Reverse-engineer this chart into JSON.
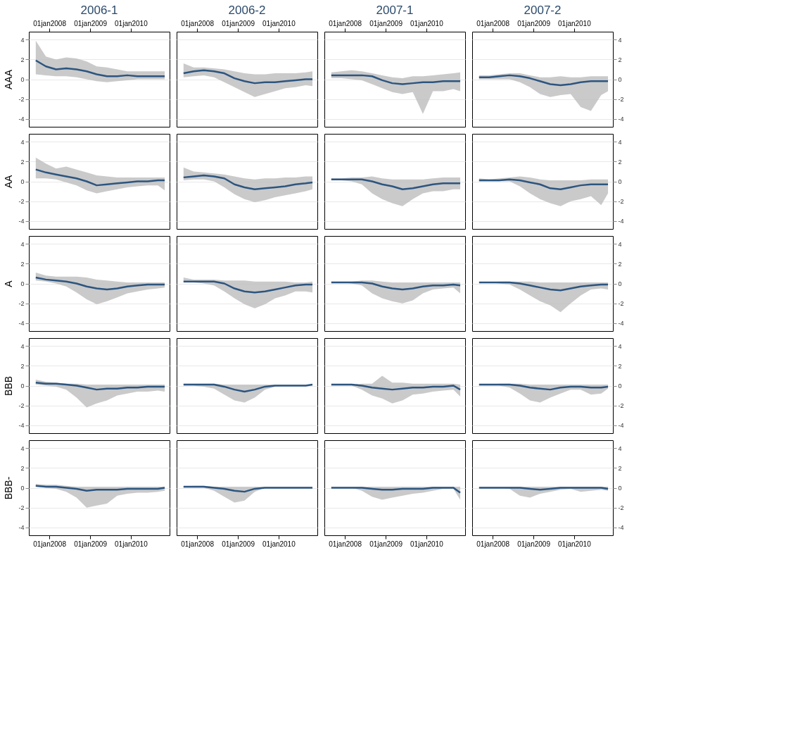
{
  "chart_data": [
    {
      "type": "line",
      "title": "2006-1",
      "ylabel": "AAA",
      "x": [
        "2007-09",
        "2007-12",
        "2008-03",
        "2008-06",
        "2008-09",
        "2008-12",
        "2009-03",
        "2009-06",
        "2009-09",
        "2009-12",
        "2010-03",
        "2010-06",
        "2010-09",
        "2010-11"
      ],
      "xlim": [
        "2007-07-01",
        "2010-12-15"
      ],
      "xticks": [
        {
          "value": "2008-01-01",
          "label": "01jan2008"
        },
        {
          "value": "2009-01-01",
          "label": "01jan2009"
        },
        {
          "value": "2010-01-01",
          "label": "01jan2010"
        }
      ],
      "ylim": [
        -4.8,
        4.8
      ],
      "yticks": [
        -4,
        -2,
        0,
        2,
        4
      ],
      "grid": "y",
      "series": [
        {
          "color": "#2c5580",
          "values": [
            1.9,
            1.3,
            1.0,
            1.1,
            1.0,
            0.8,
            0.5,
            0.3,
            0.3,
            0.4,
            0.3,
            0.3,
            0.3,
            0.3
          ],
          "lower": [
            0.5,
            0.4,
            0.3,
            0.3,
            0.2,
            0,
            -0.2,
            -0.3,
            -0.2,
            -0.1,
            0,
            0,
            0,
            0
          ],
          "upper": [
            3.9,
            2.3,
            2.0,
            2.2,
            2.1,
            1.8,
            1.3,
            1.2,
            1.0,
            0.8,
            0.8,
            0.8,
            0.8,
            0.8
          ]
        }
      ]
    },
    {
      "type": "line",
      "title": "2006-2",
      "tick_labels": "x",
      "x": [
        "2007-09",
        "2007-12",
        "2008-03",
        "2008-06",
        "2008-09",
        "2008-12",
        "2009-03",
        "2009-06",
        "2009-09",
        "2009-12",
        "2010-03",
        "2010-06",
        "2010-09",
        "2010-11"
      ],
      "xlim": [
        "2007-07-01",
        "2010-12-15"
      ],
      "xticks": [
        {
          "value": "2008-01-01",
          "label": "01jan2008"
        },
        {
          "value": "2009-01-01",
          "label": "01jan2009"
        },
        {
          "value": "2010-01-01",
          "label": "01jan2010"
        }
      ],
      "ylim": [
        -4.8,
        4.8
      ],
      "yticks": [
        -4,
        -2,
        0,
        2,
        4
      ],
      "grid": "y",
      "series": [
        {
          "color": "#2c5580",
          "values": [
            0.6,
            0.8,
            0.9,
            0.8,
            0.6,
            0.1,
            -0.2,
            -0.4,
            -0.3,
            -0.3,
            -0.2,
            -0.1,
            0,
            0
          ],
          "lower": [
            0.2,
            0.3,
            0.4,
            0.2,
            -0.3,
            -0.8,
            -1.3,
            -1.8,
            -1.5,
            -1.2,
            -0.9,
            -0.8,
            -0.6,
            -0.7
          ],
          "upper": [
            1.6,
            1.2,
            1.2,
            1.1,
            1.0,
            0.8,
            0.6,
            0.5,
            0.5,
            0.6,
            0.6,
            0.6,
            0.7,
            0.8
          ]
        }
      ]
    },
    {
      "type": "line",
      "title": "2007-1",
      "tick_labels": "x",
      "x": [
        "2007-09",
        "2007-12",
        "2008-03",
        "2008-06",
        "2008-09",
        "2008-12",
        "2009-03",
        "2009-06",
        "2009-09",
        "2009-12",
        "2010-03",
        "2010-06",
        "2010-09",
        "2010-11"
      ],
      "xlim": [
        "2007-07-01",
        "2010-12-15"
      ],
      "xticks": [
        {
          "value": "2008-01-01",
          "label": "01jan2008"
        },
        {
          "value": "2009-01-01",
          "label": "01jan2009"
        },
        {
          "value": "2010-01-01",
          "label": "01jan2010"
        }
      ],
      "ylim": [
        -4.8,
        4.8
      ],
      "yticks": [
        -4,
        -2,
        0,
        2,
        4
      ],
      "grid": "y",
      "series": [
        {
          "color": "#2c5580",
          "values": [
            0.4,
            0.4,
            0.4,
            0.4,
            0.3,
            -0.1,
            -0.4,
            -0.5,
            -0.4,
            -0.3,
            -0.3,
            -0.2,
            -0.2,
            -0.2
          ],
          "lower": [
            0.1,
            0.1,
            0,
            -0.1,
            -0.5,
            -0.9,
            -1.3,
            -1.5,
            -1.3,
            -3.5,
            -1.2,
            -1.2,
            -1.0,
            -1.2
          ],
          "upper": [
            0.7,
            0.8,
            0.9,
            0.8,
            0.6,
            0.4,
            0.2,
            0.1,
            0.3,
            0.3,
            0.4,
            0.5,
            0.6,
            0.7
          ]
        }
      ]
    },
    {
      "type": "line",
      "title": "2007-2",
      "x": [
        "2007-09",
        "2007-12",
        "2008-03",
        "2008-06",
        "2008-09",
        "2008-12",
        "2009-03",
        "2009-06",
        "2009-09",
        "2009-12",
        "2010-03",
        "2010-06",
        "2010-09",
        "2010-11"
      ],
      "xlim": [
        "2007-07-01",
        "2010-12-15"
      ],
      "xticks": [
        {
          "value": "2008-01-01",
          "label": "01jan2008"
        },
        {
          "value": "2009-01-01",
          "label": "01jan2009"
        },
        {
          "value": "2010-01-01",
          "label": "01jan2010"
        }
      ],
      "ylim": [
        -4.8,
        4.8
      ],
      "yticks": [
        -4,
        -2,
        0,
        2,
        4
      ],
      "grid": "y",
      "series": [
        {
          "color": "#2c5580",
          "values": [
            0.2,
            0.2,
            0.3,
            0.4,
            0.3,
            0.1,
            -0.2,
            -0.5,
            -0.6,
            -0.5,
            -0.3,
            -0.2,
            -0.2,
            -0.2
          ],
          "lower": [
            0,
            0,
            0,
            0,
            -0.3,
            -0.8,
            -1.5,
            -1.8,
            -1.6,
            -1.5,
            -2.8,
            -3.2,
            -1.6,
            -1.2
          ],
          "upper": [
            0.4,
            0.4,
            0.5,
            0.6,
            0.6,
            0.4,
            0.2,
            0.2,
            0.3,
            0.2,
            0.2,
            0.3,
            0.3,
            0.3
          ]
        }
      ]
    },
    {
      "type": "line",
      "ylabel": "AA",
      "tick_labels": "y",
      "x": [
        "2007-09",
        "2007-12",
        "2008-03",
        "2008-06",
        "2008-09",
        "2008-12",
        "2009-03",
        "2009-06",
        "2009-09",
        "2009-12",
        "2010-03",
        "2010-06",
        "2010-09",
        "2010-11"
      ],
      "xlim": [
        "2007-07-01",
        "2010-12-15"
      ],
      "ylim": [
        -4.8,
        4.8
      ],
      "yticks": [
        -4,
        -2,
        0,
        2,
        4
      ],
      "grid": "y",
      "series": [
        {
          "color": "#2c5580",
          "values": [
            1.2,
            0.9,
            0.7,
            0.5,
            0.3,
            0,
            -0.4,
            -0.3,
            -0.2,
            -0.1,
            0,
            0,
            0.1,
            0.1
          ],
          "lower": [
            0.3,
            0.3,
            0.2,
            -0.1,
            -0.4,
            -0.9,
            -1.2,
            -1.0,
            -0.8,
            -0.6,
            -0.5,
            -0.4,
            -0.4,
            -0.9
          ],
          "upper": [
            2.4,
            1.8,
            1.3,
            1.5,
            1.2,
            0.9,
            0.6,
            0.5,
            0.4,
            0.4,
            0.4,
            0.4,
            0.4,
            0.4
          ]
        }
      ]
    },
    {
      "type": "line",
      "tick_labels": false,
      "x": [
        "2007-09",
        "2007-12",
        "2008-03",
        "2008-06",
        "2008-09",
        "2008-12",
        "2009-03",
        "2009-06",
        "2009-09",
        "2009-12",
        "2010-03",
        "2010-06",
        "2010-09",
        "2010-11"
      ],
      "xlim": [
        "2007-07-01",
        "2010-12-15"
      ],
      "ylim": [
        -4.8,
        4.8
      ],
      "yticks": [
        -4,
        -2,
        0,
        2,
        4
      ],
      "grid": "y",
      "series": [
        {
          "color": "#2c5580",
          "values": [
            0.4,
            0.5,
            0.6,
            0.5,
            0.3,
            -0.3,
            -0.6,
            -0.8,
            -0.7,
            -0.6,
            -0.5,
            -0.3,
            -0.2,
            -0.1
          ],
          "lower": [
            0.1,
            0.2,
            0.2,
            0,
            -0.6,
            -1.3,
            -1.8,
            -2.1,
            -1.9,
            -1.6,
            -1.4,
            -1.2,
            -1.0,
            -0.8
          ],
          "upper": [
            1.4,
            1.0,
            0.9,
            0.8,
            0.7,
            0.5,
            0.3,
            0.2,
            0.3,
            0.3,
            0.4,
            0.4,
            0.5,
            0.5
          ]
        }
      ]
    },
    {
      "type": "line",
      "tick_labels": false,
      "x": [
        "2007-09",
        "2007-12",
        "2008-03",
        "2008-06",
        "2008-09",
        "2008-12",
        "2009-03",
        "2009-06",
        "2009-09",
        "2009-12",
        "2010-03",
        "2010-06",
        "2010-09",
        "2010-11"
      ],
      "xlim": [
        "2007-07-01",
        "2010-12-15"
      ],
      "ylim": [
        -4.8,
        4.8
      ],
      "yticks": [
        -4,
        -2,
        0,
        2,
        4
      ],
      "grid": "y",
      "series": [
        {
          "color": "#2c5580",
          "values": [
            0.2,
            0.2,
            0.2,
            0.2,
            0,
            -0.3,
            -0.5,
            -0.8,
            -0.7,
            -0.5,
            -0.3,
            -0.2,
            -0.2,
            -0.2
          ],
          "lower": [
            0.1,
            0.1,
            0,
            -0.3,
            -1.2,
            -1.8,
            -2.2,
            -2.5,
            -1.8,
            -1.2,
            -1.0,
            -1.0,
            -0.8,
            -0.8
          ],
          "upper": [
            0.3,
            0.3,
            0.4,
            0.4,
            0.5,
            0.3,
            0.2,
            0.2,
            0.2,
            0.2,
            0.3,
            0.4,
            0.4,
            0.4
          ]
        }
      ]
    },
    {
      "type": "line",
      "tick_labels": "y",
      "x": [
        "2007-09",
        "2007-12",
        "2008-03",
        "2008-06",
        "2008-09",
        "2008-12",
        "2009-03",
        "2009-06",
        "2009-09",
        "2009-12",
        "2010-03",
        "2010-06",
        "2010-09",
        "2010-11"
      ],
      "xlim": [
        "2007-07-01",
        "2010-12-15"
      ],
      "ylim": [
        -4.8,
        4.8
      ],
      "yticks": [
        -4,
        -2,
        0,
        2,
        4
      ],
      "grid": "y",
      "series": [
        {
          "color": "#2c5580",
          "values": [
            0.1,
            0.1,
            0.1,
            0.2,
            0.1,
            -0.1,
            -0.3,
            -0.7,
            -0.8,
            -0.6,
            -0.4,
            -0.3,
            -0.3,
            -0.3
          ],
          "lower": [
            0,
            0,
            0,
            0,
            -0.5,
            -1.2,
            -1.8,
            -2.2,
            -2.5,
            -2.0,
            -1.8,
            -1.5,
            -2.4,
            -1.2
          ],
          "upper": [
            0.3,
            0.2,
            0.3,
            0.4,
            0.5,
            0.4,
            0.2,
            0.1,
            0.1,
            0.1,
            0.1,
            0.2,
            0.2,
            0.2
          ]
        }
      ]
    },
    {
      "type": "line",
      "ylabel": "A",
      "tick_labels": "y",
      "x": [
        "2007-09",
        "2007-12",
        "2008-03",
        "2008-06",
        "2008-09",
        "2008-12",
        "2009-03",
        "2009-06",
        "2009-09",
        "2009-12",
        "2010-03",
        "2010-06",
        "2010-09",
        "2010-11"
      ],
      "xlim": [
        "2007-07-01",
        "2010-12-15"
      ],
      "ylim": [
        -4.8,
        4.8
      ],
      "yticks": [
        -4,
        -2,
        0,
        2,
        4
      ],
      "grid": "y",
      "series": [
        {
          "color": "#2c5580",
          "values": [
            0.6,
            0.4,
            0.3,
            0.2,
            0,
            -0.3,
            -0.5,
            -0.6,
            -0.5,
            -0.3,
            -0.2,
            -0.1,
            -0.1,
            -0.1
          ],
          "lower": [
            0.3,
            0.2,
            0,
            -0.3,
            -0.9,
            -1.6,
            -2.1,
            -1.8,
            -1.4,
            -1.0,
            -0.8,
            -0.6,
            -0.5,
            -0.4
          ],
          "upper": [
            1.1,
            0.8,
            0.7,
            0.7,
            0.7,
            0.6,
            0.4,
            0.3,
            0.2,
            0.1,
            0.1,
            0.1,
            0.1,
            0.1
          ]
        }
      ]
    },
    {
      "type": "line",
      "tick_labels": false,
      "x": [
        "2007-09",
        "2007-12",
        "2008-03",
        "2008-06",
        "2008-09",
        "2008-12",
        "2009-03",
        "2009-06",
        "2009-09",
        "2009-12",
        "2010-03",
        "2010-06",
        "2010-09",
        "2010-11"
      ],
      "xlim": [
        "2007-07-01",
        "2010-12-15"
      ],
      "ylim": [
        -4.8,
        4.8
      ],
      "yticks": [
        -4,
        -2,
        0,
        2,
        4
      ],
      "grid": "y",
      "series": [
        {
          "color": "#2c5580",
          "values": [
            0.2,
            0.2,
            0.2,
            0.2,
            0,
            -0.5,
            -0.8,
            -0.9,
            -0.8,
            -0.6,
            -0.4,
            -0.2,
            -0.1,
            -0.1
          ],
          "lower": [
            0.1,
            0.1,
            0,
            -0.2,
            -0.8,
            -1.5,
            -2.1,
            -2.5,
            -2.1,
            -1.5,
            -1.2,
            -0.8,
            -0.8,
            -0.9
          ],
          "upper": [
            0.6,
            0.4,
            0.4,
            0.4,
            0.3,
            0.3,
            0.3,
            0.2,
            0.2,
            0.2,
            0.2,
            0.1,
            0.1,
            0.2
          ]
        }
      ]
    },
    {
      "type": "line",
      "tick_labels": false,
      "x": [
        "2007-09",
        "2007-12",
        "2008-03",
        "2008-06",
        "2008-09",
        "2008-12",
        "2009-03",
        "2009-06",
        "2009-09",
        "2009-12",
        "2010-03",
        "2010-06",
        "2010-09",
        "2010-11"
      ],
      "xlim": [
        "2007-07-01",
        "2010-12-15"
      ],
      "ylim": [
        -4.8,
        4.8
      ],
      "yticks": [
        -4,
        -2,
        0,
        2,
        4
      ],
      "grid": "y",
      "series": [
        {
          "color": "#2c5580",
          "values": [
            0.1,
            0.1,
            0.1,
            0.1,
            0,
            -0.3,
            -0.5,
            -0.6,
            -0.5,
            -0.3,
            -0.2,
            -0.2,
            -0.1,
            -0.2
          ],
          "lower": [
            0.1,
            0.1,
            0,
            -0.2,
            -1.0,
            -1.5,
            -1.8,
            -2.0,
            -1.7,
            -1.0,
            -0.6,
            -0.5,
            -0.4,
            -1.0
          ],
          "upper": [
            0.2,
            0.2,
            0.2,
            0.3,
            0.3,
            0.2,
            0.1,
            0.1,
            0.1,
            0.1,
            0.1,
            0.1,
            0.1,
            0.1
          ]
        }
      ]
    },
    {
      "type": "line",
      "tick_labels": "y",
      "x": [
        "2007-09",
        "2007-12",
        "2008-03",
        "2008-06",
        "2008-09",
        "2008-12",
        "2009-03",
        "2009-06",
        "2009-09",
        "2009-12",
        "2010-03",
        "2010-06",
        "2010-09",
        "2010-11"
      ],
      "xlim": [
        "2007-07-01",
        "2010-12-15"
      ],
      "ylim": [
        -4.8,
        4.8
      ],
      "yticks": [
        -4,
        -2,
        0,
        2,
        4
      ],
      "grid": "y",
      "series": [
        {
          "color": "#2c5580",
          "values": [
            0.1,
            0.1,
            0.1,
            0.1,
            0,
            -0.2,
            -0.4,
            -0.6,
            -0.7,
            -0.5,
            -0.3,
            -0.2,
            -0.1,
            -0.1
          ],
          "lower": [
            0.1,
            0.1,
            0,
            -0.1,
            -0.6,
            -1.2,
            -1.8,
            -2.2,
            -2.9,
            -2.0,
            -1.2,
            -0.6,
            -0.5,
            -0.6
          ],
          "upper": [
            0.1,
            0.1,
            0.2,
            0.2,
            0.2,
            0.2,
            0.1,
            0.1,
            0.1,
            0.1,
            0.1,
            0.1,
            0.1,
            0.1
          ]
        }
      ]
    },
    {
      "type": "line",
      "ylabel": "BBB",
      "tick_labels": "y",
      "x": [
        "2007-09",
        "2007-12",
        "2008-03",
        "2008-06",
        "2008-09",
        "2008-12",
        "2009-03",
        "2009-06",
        "2009-09",
        "2009-12",
        "2010-03",
        "2010-06",
        "2010-09",
        "2010-11"
      ],
      "xlim": [
        "2007-07-01",
        "2010-12-15"
      ],
      "ylim": [
        -4.8,
        4.8
      ],
      "yticks": [
        -4,
        -2,
        0,
        2,
        4
      ],
      "grid": "y",
      "series": [
        {
          "color": "#2c5580",
          "values": [
            0.3,
            0.2,
            0.2,
            0.1,
            0,
            -0.2,
            -0.4,
            -0.3,
            -0.3,
            -0.2,
            -0.2,
            -0.1,
            -0.1,
            -0.1
          ],
          "lower": [
            0.1,
            0,
            -0.1,
            -0.4,
            -1.2,
            -2.2,
            -1.8,
            -1.5,
            -1.0,
            -0.8,
            -0.6,
            -0.6,
            -0.5,
            -0.6
          ],
          "upper": [
            0.6,
            0.4,
            0.3,
            0.2,
            0.2,
            0.1,
            0.1,
            0.1,
            0.1,
            0.1,
            0.1,
            0.1,
            0.1,
            0.1
          ]
        }
      ]
    },
    {
      "type": "line",
      "tick_labels": false,
      "x": [
        "2007-09",
        "2007-12",
        "2008-03",
        "2008-06",
        "2008-09",
        "2008-12",
        "2009-03",
        "2009-06",
        "2009-09",
        "2009-12",
        "2010-03",
        "2010-06",
        "2010-09",
        "2010-11"
      ],
      "xlim": [
        "2007-07-01",
        "2010-12-15"
      ],
      "ylim": [
        -4.8,
        4.8
      ],
      "yticks": [
        -4,
        -2,
        0,
        2,
        4
      ],
      "grid": "y",
      "series": [
        {
          "color": "#2c5580",
          "values": [
            0.1,
            0.1,
            0.1,
            0.1,
            -0.1,
            -0.4,
            -0.6,
            -0.4,
            -0.1,
            0,
            0,
            0,
            0,
            0.1
          ],
          "lower": [
            0,
            0,
            -0.1,
            -0.3,
            -0.9,
            -1.5,
            -1.7,
            -1.2,
            -0.4,
            -0.1,
            0,
            0,
            0,
            0
          ],
          "upper": [
            0.2,
            0.2,
            0.2,
            0.2,
            0.1,
            0.1,
            0.1,
            0.1,
            0.1,
            0.1,
            0.1,
            0.1,
            0.1,
            0.1
          ]
        }
      ]
    },
    {
      "type": "line",
      "tick_labels": false,
      "x": [
        "2007-09",
        "2007-12",
        "2008-03",
        "2008-06",
        "2008-09",
        "2008-12",
        "2009-03",
        "2009-06",
        "2009-09",
        "2009-12",
        "2010-03",
        "2010-06",
        "2010-09",
        "2010-11"
      ],
      "xlim": [
        "2007-07-01",
        "2010-12-15"
      ],
      "ylim": [
        -4.8,
        4.8
      ],
      "yticks": [
        -4,
        -2,
        0,
        2,
        4
      ],
      "grid": "y",
      "series": [
        {
          "color": "#2c5580",
          "values": [
            0.1,
            0.1,
            0.1,
            0,
            -0.2,
            -0.3,
            -0.4,
            -0.3,
            -0.2,
            -0.2,
            -0.1,
            -0.1,
            0,
            -0.4
          ],
          "lower": [
            0,
            0,
            0,
            -0.4,
            -1.0,
            -1.3,
            -1.8,
            -1.5,
            -0.9,
            -0.8,
            -0.6,
            -0.5,
            -0.4,
            -1.1
          ],
          "upper": [
            0.1,
            0.1,
            0.1,
            0.2,
            0.2,
            1.0,
            0.3,
            0.3,
            0.2,
            0.2,
            0.2,
            0.2,
            0.2,
            0.1
          ]
        }
      ]
    },
    {
      "type": "line",
      "tick_labels": "y",
      "x": [
        "2007-09",
        "2007-12",
        "2008-03",
        "2008-06",
        "2008-09",
        "2008-12",
        "2009-03",
        "2009-06",
        "2009-09",
        "2009-12",
        "2010-03",
        "2010-06",
        "2010-09",
        "2010-11"
      ],
      "xlim": [
        "2007-07-01",
        "2010-12-15"
      ],
      "ylim": [
        -4.8,
        4.8
      ],
      "yticks": [
        -4,
        -2,
        0,
        2,
        4
      ],
      "grid": "y",
      "series": [
        {
          "color": "#2c5580",
          "values": [
            0.1,
            0.1,
            0.1,
            0.1,
            0,
            -0.2,
            -0.3,
            -0.4,
            -0.2,
            -0.1,
            -0.1,
            -0.2,
            -0.2,
            -0.1
          ],
          "lower": [
            0,
            0,
            0,
            -0.2,
            -0.8,
            -1.5,
            -1.7,
            -1.2,
            -0.8,
            -0.4,
            -0.4,
            -0.9,
            -0.8,
            -0.3
          ],
          "upper": [
            0.1,
            0.1,
            0.2,
            0.2,
            0.2,
            0.1,
            0.1,
            0.1,
            0.1,
            0.1,
            0.1,
            0.1,
            0.1,
            0.1
          ]
        }
      ]
    },
    {
      "type": "line",
      "ylabel": "BBB-",
      "x": [
        "2007-09",
        "2007-12",
        "2008-03",
        "2008-06",
        "2008-09",
        "2008-12",
        "2009-03",
        "2009-06",
        "2009-09",
        "2009-12",
        "2010-03",
        "2010-06",
        "2010-09",
        "2010-11"
      ],
      "xlim": [
        "2007-07-01",
        "2010-12-15"
      ],
      "xticks": [
        {
          "value": "2008-01-01",
          "label": "01jan2008"
        },
        {
          "value": "2009-01-01",
          "label": "01jan2009"
        },
        {
          "value": "2010-01-01",
          "label": "01jan2010"
        }
      ],
      "ylim": [
        -4.8,
        4.8
      ],
      "yticks": [
        -4,
        -2,
        0,
        2,
        4
      ],
      "grid": "y",
      "series": [
        {
          "color": "#2c5580",
          "values": [
            0.2,
            0.1,
            0.1,
            0,
            -0.1,
            -0.3,
            -0.2,
            -0.2,
            -0.2,
            -0.1,
            -0.1,
            -0.1,
            -0.1,
            0
          ],
          "lower": [
            0.1,
            0,
            -0.1,
            -0.4,
            -1.0,
            -2.0,
            -1.8,
            -1.6,
            -0.8,
            -0.6,
            -0.5,
            -0.5,
            -0.4,
            -0.3
          ],
          "upper": [
            0.4,
            0.3,
            0.3,
            0.2,
            0.1,
            0.1,
            0.1,
            0.1,
            0.1,
            0.1,
            0.1,
            0.1,
            0.1,
            0.1
          ]
        }
      ]
    },
    {
      "type": "line",
      "tick_labels": "x",
      "x": [
        "2007-09",
        "2007-12",
        "2008-03",
        "2008-06",
        "2008-09",
        "2008-12",
        "2009-03",
        "2009-06",
        "2009-09",
        "2009-12",
        "2010-03",
        "2010-06",
        "2010-09",
        "2010-11"
      ],
      "xlim": [
        "2007-07-01",
        "2010-12-15"
      ],
      "xticks": [
        {
          "value": "2008-01-01",
          "label": "01jan2008"
        },
        {
          "value": "2009-01-01",
          "label": "01jan2009"
        },
        {
          "value": "2010-01-01",
          "label": "01jan2010"
        }
      ],
      "ylim": [
        -4.8,
        4.8
      ],
      "yticks": [
        -4,
        -2,
        0,
        2,
        4
      ],
      "grid": "y",
      "series": [
        {
          "color": "#2c5580",
          "values": [
            0.1,
            0.1,
            0.1,
            0,
            -0.1,
            -0.3,
            -0.4,
            -0.1,
            0,
            0,
            0,
            0,
            0,
            0
          ],
          "lower": [
            0,
            0,
            0,
            -0.3,
            -0.9,
            -1.5,
            -1.3,
            -0.4,
            0,
            0,
            0,
            0,
            0,
            0
          ],
          "upper": [
            0.1,
            0.2,
            0.2,
            0.1,
            0.1,
            0.1,
            0.1,
            0.1,
            0.1,
            0.1,
            0.1,
            0.1,
            0.1,
            0.1
          ]
        }
      ]
    },
    {
      "type": "line",
      "tick_labels": "x",
      "x": [
        "2007-09",
        "2007-12",
        "2008-03",
        "2008-06",
        "2008-09",
        "2008-12",
        "2009-03",
        "2009-06",
        "2009-09",
        "2009-12",
        "2010-03",
        "2010-06",
        "2010-09",
        "2010-11"
      ],
      "xlim": [
        "2007-07-01",
        "2010-12-15"
      ],
      "xticks": [
        {
          "value": "2008-01-01",
          "label": "01jan2008"
        },
        {
          "value": "2009-01-01",
          "label": "01jan2009"
        },
        {
          "value": "2010-01-01",
          "label": "01jan2010"
        }
      ],
      "ylim": [
        -4.8,
        4.8
      ],
      "yticks": [
        -4,
        -2,
        0,
        2,
        4
      ],
      "grid": "y",
      "series": [
        {
          "color": "#2c5580",
          "values": [
            0,
            0,
            0,
            0,
            -0.1,
            -0.2,
            -0.2,
            -0.1,
            -0.1,
            -0.1,
            0,
            0,
            0,
            -0.5
          ],
          "lower": [
            0,
            0,
            0,
            -0.3,
            -0.9,
            -1.2,
            -1.0,
            -0.8,
            -0.6,
            -0.5,
            -0.3,
            -0.1,
            -0.1,
            -1.2
          ],
          "upper": [
            0.1,
            0.1,
            0.1,
            0.1,
            0.1,
            0.1,
            0.1,
            0.1,
            0.1,
            0.1,
            0.1,
            0.1,
            0.1,
            0.1
          ]
        }
      ]
    },
    {
      "type": "line",
      "x": [
        "2007-09",
        "2007-12",
        "2008-03",
        "2008-06",
        "2008-09",
        "2008-12",
        "2009-03",
        "2009-06",
        "2009-09",
        "2009-12",
        "2010-03",
        "2010-06",
        "2010-09",
        "2010-11"
      ],
      "xlim": [
        "2007-07-01",
        "2010-12-15"
      ],
      "xticks": [
        {
          "value": "2008-01-01",
          "label": "01jan2008"
        },
        {
          "value": "2009-01-01",
          "label": "01jan2009"
        },
        {
          "value": "2010-01-01",
          "label": "01jan2010"
        }
      ],
      "ylim": [
        -4.8,
        4.8
      ],
      "yticks": [
        -4,
        -2,
        0,
        2,
        4
      ],
      "grid": "y",
      "series": [
        {
          "color": "#2c5580",
          "values": [
            0,
            0,
            0,
            0,
            0,
            -0.1,
            -0.2,
            -0.1,
            0,
            0,
            0,
            0,
            0,
            -0.1
          ],
          "lower": [
            0,
            0,
            0,
            -0.1,
            -0.8,
            -1.0,
            -0.6,
            -0.4,
            -0.2,
            -0.1,
            -0.4,
            -0.3,
            -0.2,
            -0.3
          ],
          "upper": [
            0.1,
            0.1,
            0.1,
            0.1,
            0.1,
            0.1,
            0.1,
            0.1,
            0.1,
            0.1,
            0.1,
            0.1,
            0.1,
            0.1
          ]
        }
      ]
    }
  ]
}
